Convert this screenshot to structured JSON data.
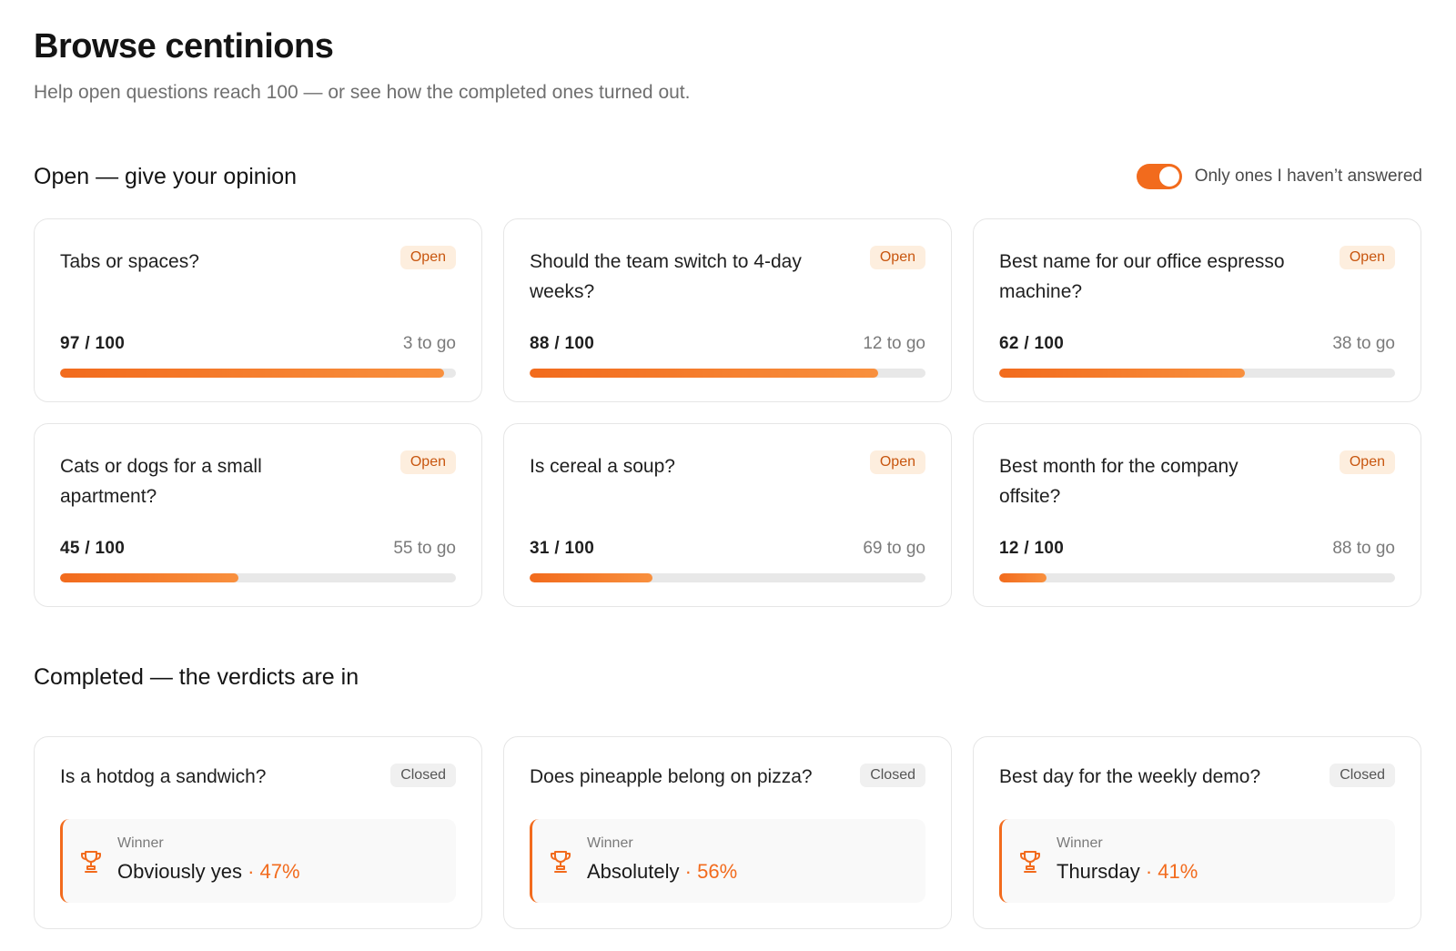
{
  "header": {
    "title": "Browse centinions",
    "subtitle": "Help open questions reach 100 — or see how the completed ones turned out."
  },
  "open_section": {
    "title": "Open — give your opinion",
    "filter_toggle": {
      "label": "Only ones I haven’t answered",
      "on": true
    },
    "cards": [
      {
        "question": "Tabs or spaces?",
        "status": "Open",
        "count": "97 / 100",
        "remaining": "3 to go",
        "progress": 0.97
      },
      {
        "question": "Should the team switch to 4-day weeks?",
        "status": "Open",
        "count": "88 / 100",
        "remaining": "12 to go",
        "progress": 0.88
      },
      {
        "question": "Best name for our office espresso machine?",
        "status": "Open",
        "count": "62 / 100",
        "remaining": "38 to go",
        "progress": 0.62
      },
      {
        "question": "Cats or dogs for a small apartment?",
        "status": "Open",
        "count": "45 / 100",
        "remaining": "55 to go",
        "progress": 0.45
      },
      {
        "question": "Is cereal a soup?",
        "status": "Open",
        "count": "31 / 100",
        "remaining": "69 to go",
        "progress": 0.31
      },
      {
        "question": "Best month for the company offsite?",
        "status": "Open",
        "count": "12 / 100",
        "remaining": "88 to go",
        "progress": 0.12
      }
    ]
  },
  "completed_section": {
    "title": "Completed — the verdicts are in",
    "cards": [
      {
        "question": "Is a hotdog a sandwich?",
        "status": "Closed",
        "winner_label": "Winner",
        "winner": "Obviously yes",
        "separator": "·",
        "percent": "47%",
        "icon": "trophy-icon"
      },
      {
        "question": "Does pineapple belong on pizza?",
        "status": "Closed",
        "winner_label": "Winner",
        "winner": "Absolutely",
        "separator": "·",
        "percent": "56%",
        "icon": "trophy-icon"
      },
      {
        "question": "Best day for the weekly demo?",
        "status": "Closed",
        "winner_label": "Winner",
        "winner": "Thursday",
        "separator": "·",
        "percent": "41%",
        "icon": "trophy-icon"
      }
    ]
  },
  "colors": {
    "accent": "#f26b1d",
    "badge_open_bg": "#fdeede",
    "badge_closed_bg": "#f0f0f0"
  }
}
